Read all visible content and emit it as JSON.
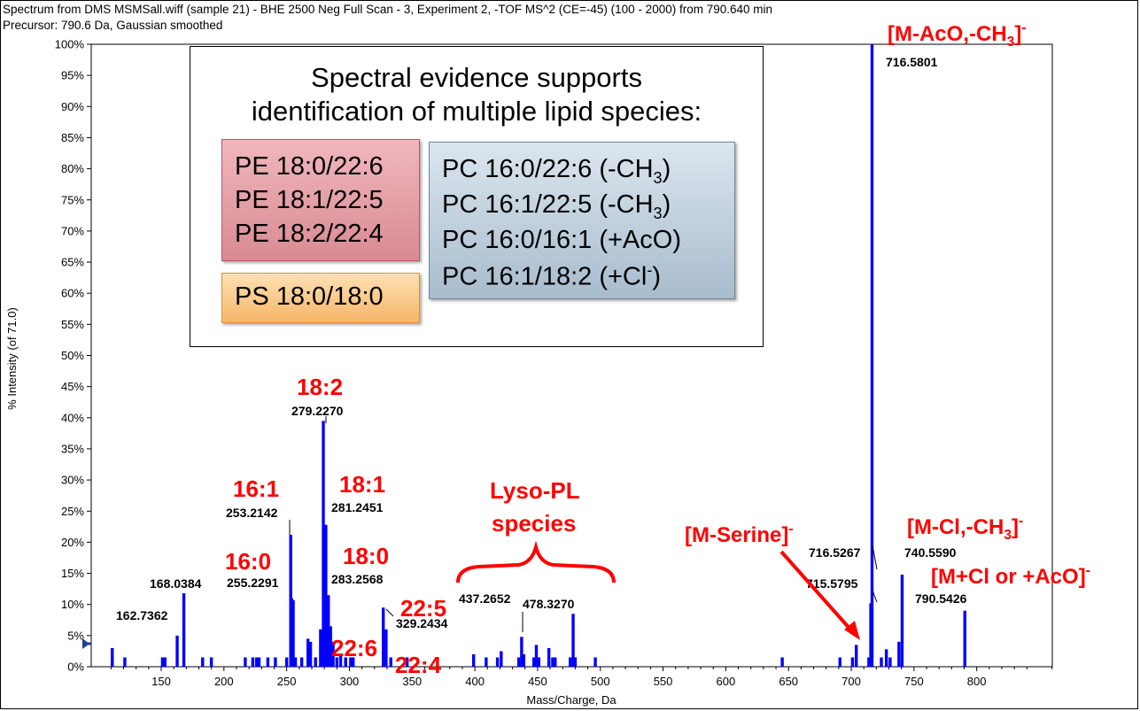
{
  "header": {
    "line1": "Spectrum from DMS MSMSall.wiff (sample 21) - BHE 2500 Neg Full Scan - 3, Experiment 2, -TOF MS^2 (CE=-45) (100 - 2000) from 790.640 min",
    "line2": "Precursor: 790.6 Da, Gaussian smoothed"
  },
  "evidence_box": {
    "title_line1": "Spectral evidence supports",
    "title_line2": "identification of multiple lipid species:",
    "pe_items": [
      "PE 18:0/22:6",
      "PE 18:1/22:5",
      "PE 18:2/22:4"
    ],
    "ps_items": [
      "PS 18:0/18:0"
    ],
    "pc_items": [
      {
        "base": "PC 16:0/22:6  (-CH",
        "sub": "3",
        "sup": "",
        "end": ")"
      },
      {
        "base": "PC 16:1/22:5  (-CH",
        "sub": "3",
        "sup": "",
        "end": ")"
      },
      {
        "base": "PC 16:0/16:1  (+AcO)",
        "sub": "",
        "sup": "",
        "end": ""
      },
      {
        "base": "PC 16:1/18:2  (+Cl",
        "sub": "",
        "sup": "-",
        "end": ")"
      }
    ]
  },
  "colors": {
    "bar": "#0000ff",
    "annotation": "#ff0000",
    "label": "#000000"
  },
  "chart_data": {
    "type": "bar",
    "xlabel": "Mass/Charge, Da",
    "ylabel": "% Intensity (of 71.0)",
    "xlim": [
      100,
      1000
    ],
    "ylim": [
      0,
      100
    ],
    "xticks": [
      150,
      200,
      250,
      300,
      350,
      400,
      450,
      500,
      550,
      600,
      650,
      700,
      750,
      800
    ],
    "yticks": [
      0,
      5,
      10,
      15,
      20,
      25,
      30,
      35,
      40,
      45,
      50,
      55,
      60,
      65,
      70,
      75,
      80,
      85,
      90,
      95,
      100
    ],
    "peaks": [
      {
        "x": 111.0,
        "y": 3.0
      },
      {
        "x": 121.0,
        "y": 1.5
      },
      {
        "x": 151.0,
        "y": 1.5
      },
      {
        "x": 153.0,
        "y": 1.5
      },
      {
        "x": 162.7362,
        "y": 5.0
      },
      {
        "x": 168.0384,
        "y": 11.8
      },
      {
        "x": 183.0,
        "y": 1.5
      },
      {
        "x": 190.0,
        "y": 1.5
      },
      {
        "x": 217.0,
        "y": 1.5
      },
      {
        "x": 223.0,
        "y": 1.5
      },
      {
        "x": 226.0,
        "y": 1.5
      },
      {
        "x": 228.0,
        "y": 1.5
      },
      {
        "x": 235.0,
        "y": 1.5
      },
      {
        "x": 241.0,
        "y": 1.5
      },
      {
        "x": 250.0,
        "y": 1.5
      },
      {
        "x": 253.2142,
        "y": 21.2
      },
      {
        "x": 254.0,
        "y": 11.0
      },
      {
        "x": 255.2291,
        "y": 10.7
      },
      {
        "x": 257.0,
        "y": 1.5
      },
      {
        "x": 262.0,
        "y": 1.5
      },
      {
        "x": 267.0,
        "y": 4.5
      },
      {
        "x": 269.0,
        "y": 4.0
      },
      {
        "x": 273.0,
        "y": 1.5
      },
      {
        "x": 277.0,
        "y": 6.0
      },
      {
        "x": 279.227,
        "y": 39.5
      },
      {
        "x": 280.0,
        "y": 6.0
      },
      {
        "x": 281.2451,
        "y": 22.8
      },
      {
        "x": 282.0,
        "y": 11.0
      },
      {
        "x": 283.2568,
        "y": 11.5
      },
      {
        "x": 285.0,
        "y": 6.5
      },
      {
        "x": 287.0,
        "y": 4.0
      },
      {
        "x": 290.0,
        "y": 1.5
      },
      {
        "x": 293.0,
        "y": 2.0
      },
      {
        "x": 297.0,
        "y": 1.5
      },
      {
        "x": 301.0,
        "y": 1.5
      },
      {
        "x": 303.0,
        "y": 1.5
      },
      {
        "x": 327.0,
        "y": 9.5
      },
      {
        "x": 329.2434,
        "y": 6.0
      },
      {
        "x": 333.0,
        "y": 1.5
      },
      {
        "x": 346.0,
        "y": 1.5
      },
      {
        "x": 399.0,
        "y": 2.0
      },
      {
        "x": 409.0,
        "y": 1.5
      },
      {
        "x": 418.0,
        "y": 1.5
      },
      {
        "x": 421.0,
        "y": 2.5
      },
      {
        "x": 435.0,
        "y": 1.5
      },
      {
        "x": 437.2652,
        "y": 4.8
      },
      {
        "x": 439.0,
        "y": 2.0
      },
      {
        "x": 447.0,
        "y": 1.5
      },
      {
        "x": 449.0,
        "y": 3.5
      },
      {
        "x": 451.0,
        "y": 1.5
      },
      {
        "x": 459.0,
        "y": 3.0
      },
      {
        "x": 462.0,
        "y": 1.5
      },
      {
        "x": 464.0,
        "y": 1.5
      },
      {
        "x": 476.0,
        "y": 1.5
      },
      {
        "x": 478.327,
        "y": 8.5
      },
      {
        "x": 480.0,
        "y": 1.5
      },
      {
        "x": 496.0,
        "y": 1.5
      },
      {
        "x": 645.0,
        "y": 1.5
      },
      {
        "x": 691.0,
        "y": 1.5
      },
      {
        "x": 701.0,
        "y": 1.5
      },
      {
        "x": 704.0,
        "y": 3.5
      },
      {
        "x": 714.0,
        "y": 1.5
      },
      {
        "x": 715.5795,
        "y": 10.2
      },
      {
        "x": 716.5801,
        "y": 100.0
      },
      {
        "x": 724.0,
        "y": 1.5
      },
      {
        "x": 728.0,
        "y": 2.8
      },
      {
        "x": 731.0,
        "y": 1.5
      },
      {
        "x": 738.0,
        "y": 4.0
      },
      {
        "x": 740.559,
        "y": 14.8
      },
      {
        "x": 790.5426,
        "y": 9.0
      }
    ],
    "peak_labels": [
      {
        "text": "162.7362",
        "x": 162.7362,
        "y": 5.0
      },
      {
        "text": "168.0384",
        "x": 168.0384,
        "y": 11.8
      },
      {
        "text": "253.2142",
        "x": 253.2142,
        "y": 21.2
      },
      {
        "text": "255.2291",
        "x": 255.2291,
        "y": 10.7
      },
      {
        "text": "279.2270",
        "x": 279.227,
        "y": 39.5
      },
      {
        "text": "281.2451",
        "x": 281.2451,
        "y": 22.8
      },
      {
        "text": "283.2568",
        "x": 283.2568,
        "y": 11.5
      },
      {
        "text": "329.2434",
        "x": 329.2434,
        "y": 6.0
      },
      {
        "text": "437.2652",
        "x": 437.2652,
        "y": 4.8
      },
      {
        "text": "478.3270",
        "x": 478.327,
        "y": 8.5
      },
      {
        "text": "716.5801",
        "x": 716.5801,
        "y": 100.0
      },
      {
        "text": "716.5267",
        "x": 716.5267,
        "y": 10.2
      },
      {
        "text": "715.5795",
        "x": 715.5795,
        "y": 10.2
      },
      {
        "text": "740.5590",
        "x": 740.559,
        "y": 14.8
      },
      {
        "text": "790.5426",
        "x": 790.5426,
        "y": 9.0
      }
    ],
    "annotations": [
      {
        "text": "18:2"
      },
      {
        "text": "16:1"
      },
      {
        "text": "18:1"
      },
      {
        "text": "16:0"
      },
      {
        "text": "18:0"
      },
      {
        "text": "22:6"
      },
      {
        "text": "22:5"
      },
      {
        "text": "22:4"
      },
      {
        "text": "Lyso-PL"
      },
      {
        "text": "species"
      },
      {
        "text": "[M-Serine]",
        "sup": "-"
      },
      {
        "text": "[M-AcO,-CH",
        "sub": "3",
        "end": "]",
        "sup": "-"
      },
      {
        "text": "[M-Cl,-CH",
        "sub": "3",
        "end": "]",
        "sup": "-"
      },
      {
        "text": "[M+Cl or +AcO]",
        "sup": "-"
      }
    ]
  }
}
